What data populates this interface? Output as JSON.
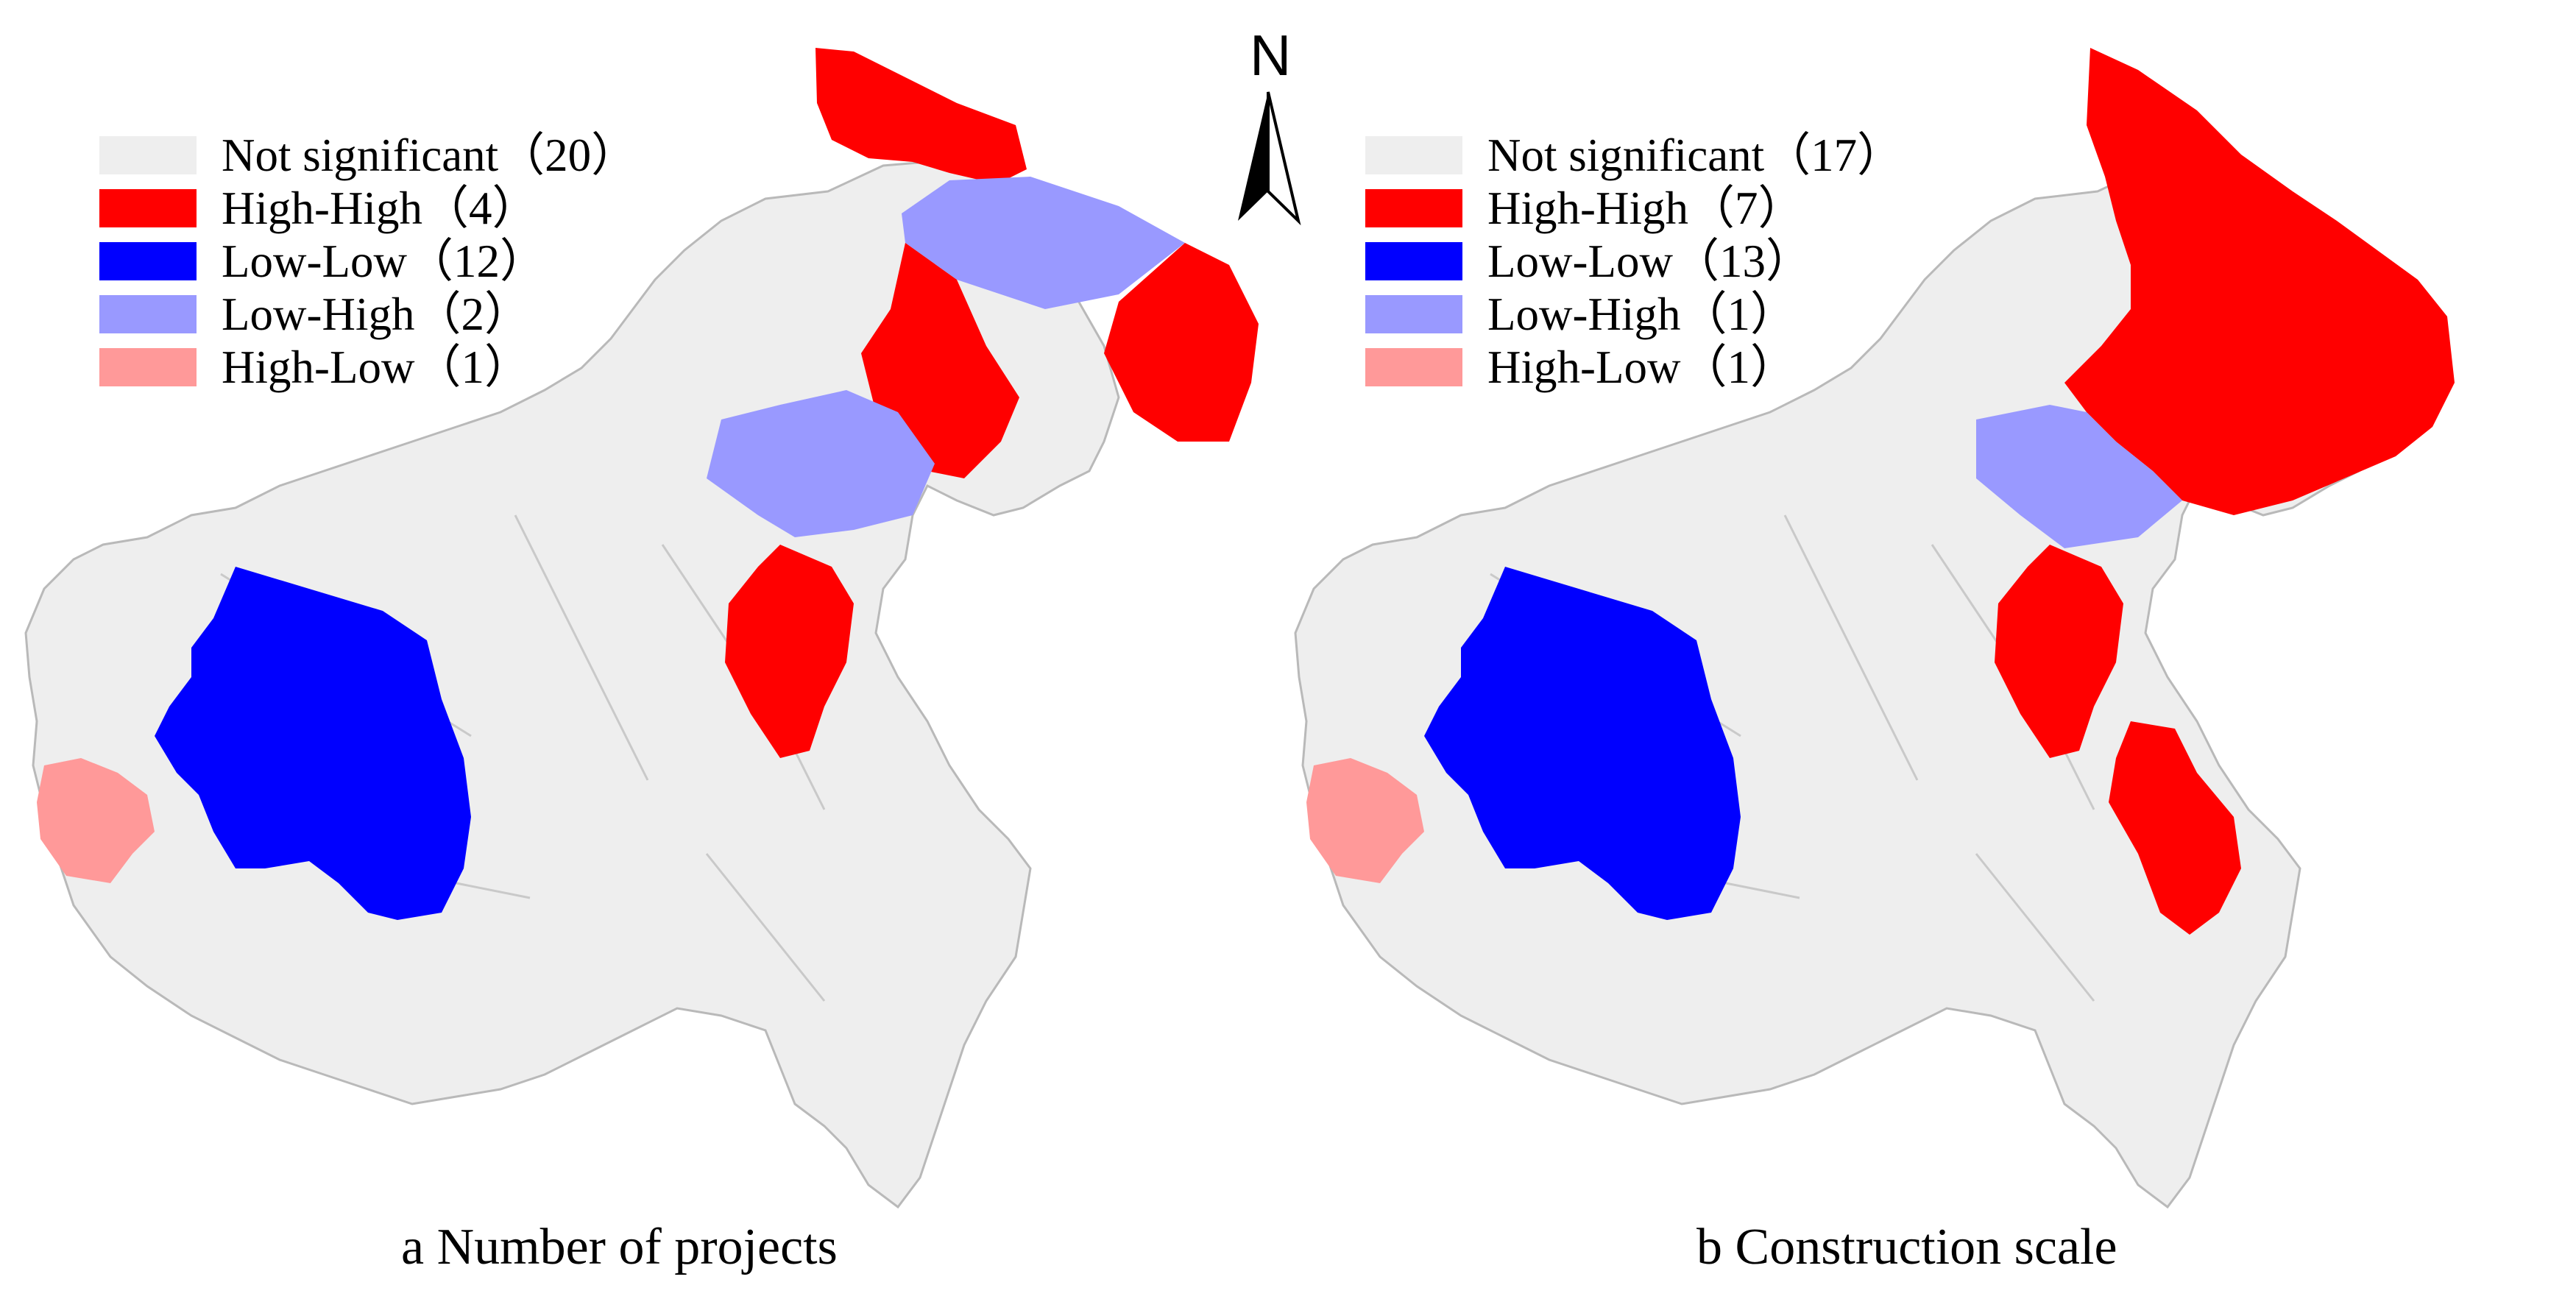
{
  "colors": {
    "not_significant": "#eeeeee",
    "high_high": "#ff0000",
    "low_low": "#0000ff",
    "low_high": "#9999ff",
    "high_low": "#ff9999",
    "border": "#b9b9b9"
  },
  "north_arrow": {
    "label": "N"
  },
  "panels": [
    {
      "caption": "a  Number of projects",
      "legend": [
        {
          "category": "Not significant",
          "count": "20",
          "text": "Not significant（20）",
          "color": "#eeeeee"
        },
        {
          "category": "High-High",
          "count": "4",
          "text": "High-High（4）",
          "color": "#ff0000"
        },
        {
          "category": "Low-Low",
          "count": "12",
          "text": "Low-Low（12）",
          "color": "#0000ff"
        },
        {
          "category": "Low-High",
          "count": "2",
          "text": "Low-High（2）",
          "color": "#9999ff"
        },
        {
          "category": "High-Low",
          "count": "1",
          "text": "High-Low（1）",
          "color": "#ff9999"
        }
      ]
    },
    {
      "caption": "b  Construction scale",
      "legend": [
        {
          "category": "Not significant",
          "count": "17",
          "text": "Not significant（17）",
          "color": "#eeeeee"
        },
        {
          "category": "High-High",
          "count": "7",
          "text": "High-High（7）",
          "color": "#ff0000"
        },
        {
          "category": "Low-Low",
          "count": "13",
          "text": "Low-Low（13）",
          "color": "#0000ff"
        },
        {
          "category": "Low-High",
          "count": "1",
          "text": "Low-High（1）",
          "color": "#9999ff"
        },
        {
          "category": "High-Low",
          "count": "1",
          "text": "High-Low（1）",
          "color": "#ff9999"
        }
      ]
    }
  ]
}
